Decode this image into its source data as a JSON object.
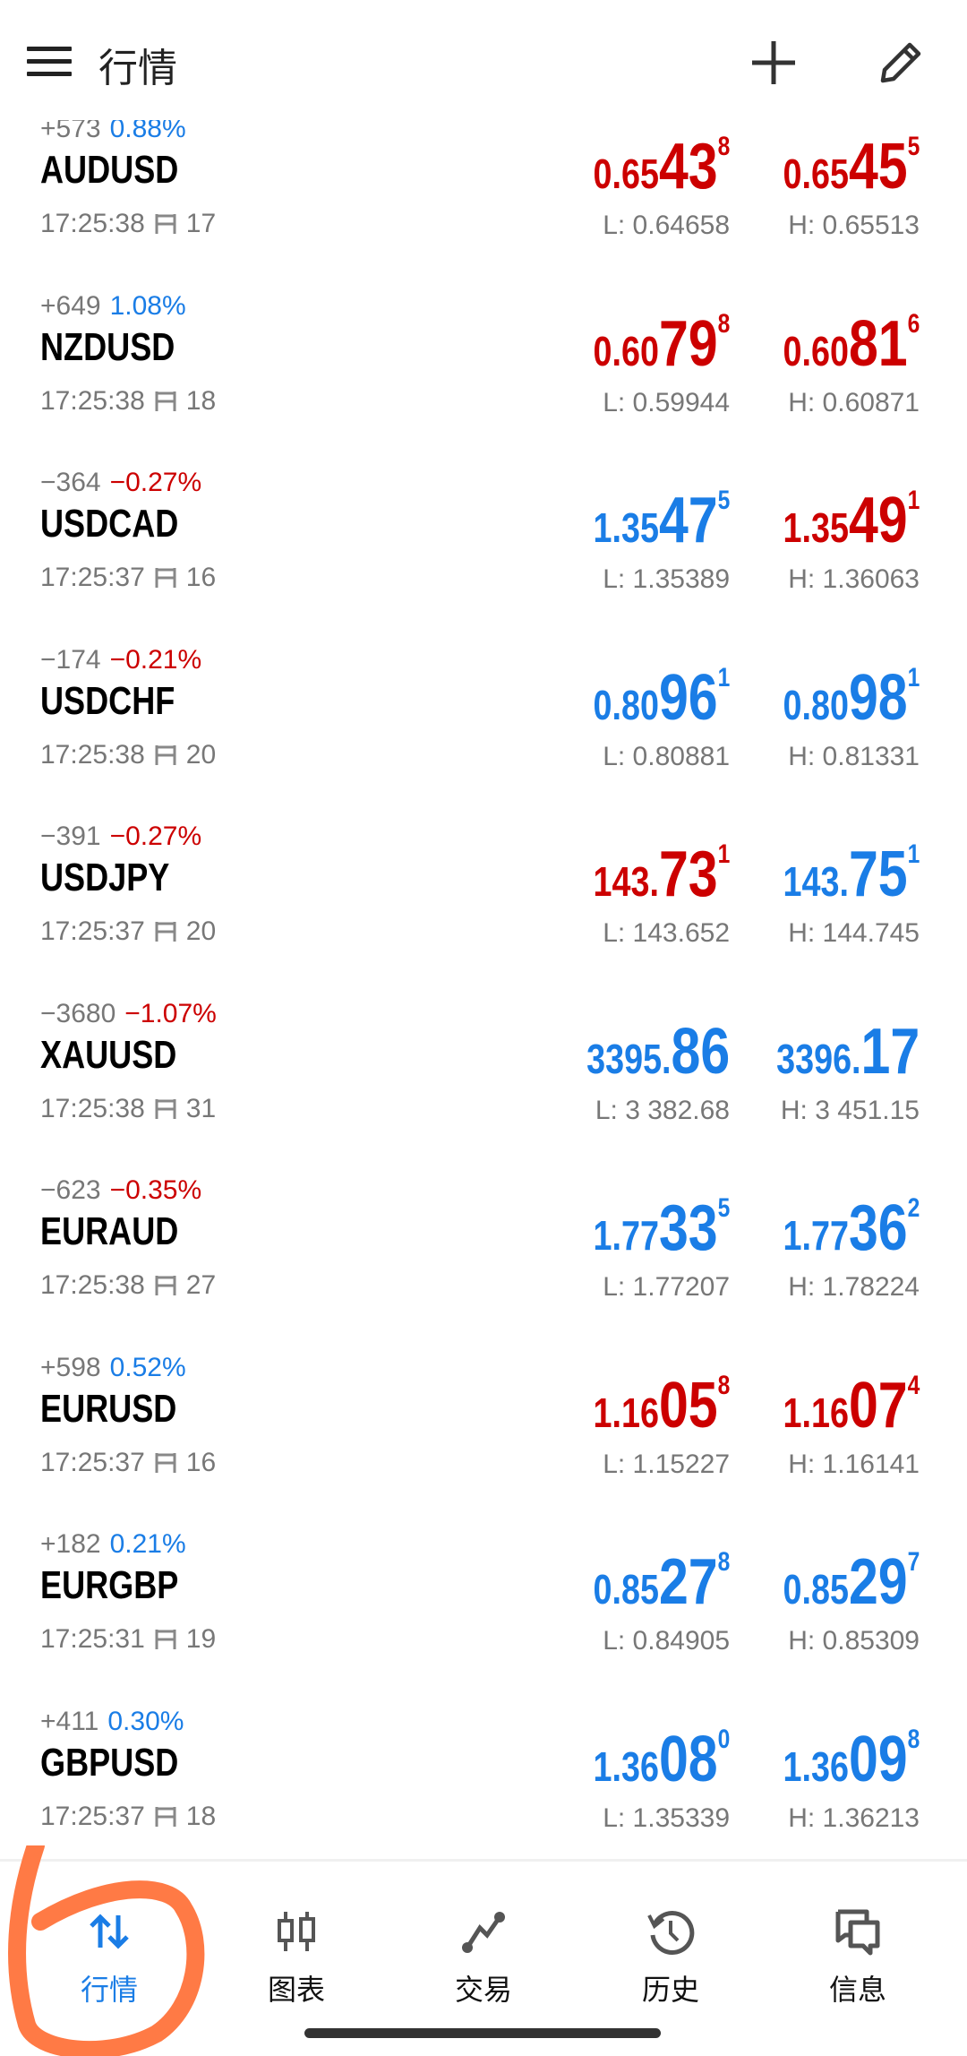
{
  "header": {
    "title": "行情",
    "menu_icon": "hamburger-menu-icon",
    "add_icon": "plus-icon",
    "edit_icon": "pencil-icon"
  },
  "colors": {
    "up": "#1a7de6",
    "down": "#cc0000",
    "annotation": "#ff7a45"
  },
  "rows": [
    {
      "symbol": "AUDUSD",
      "change": "+573",
      "pct": "0.88%",
      "pct_color": "blue",
      "time": "17:25:38",
      "spread": "17",
      "bid": {
        "pre": "0.65",
        "big": "43",
        "sup": "8",
        "color": "red"
      },
      "ask": {
        "pre": "0.65",
        "big": "45",
        "sup": "5",
        "color": "red"
      },
      "low": "L: 0.64658",
      "high": "H: 0.65513"
    },
    {
      "symbol": "NZDUSD",
      "change": "+649",
      "pct": "1.08%",
      "pct_color": "blue",
      "time": "17:25:38",
      "spread": "18",
      "bid": {
        "pre": "0.60",
        "big": "79",
        "sup": "8",
        "color": "red"
      },
      "ask": {
        "pre": "0.60",
        "big": "81",
        "sup": "6",
        "color": "red"
      },
      "low": "L: 0.59944",
      "high": "H: 0.60871"
    },
    {
      "symbol": "USDCAD",
      "change": "−364",
      "pct": "−0.27%",
      "pct_color": "red",
      "time": "17:25:37",
      "spread": "16",
      "bid": {
        "pre": "1.35",
        "big": "47",
        "sup": "5",
        "color": "blue"
      },
      "ask": {
        "pre": "1.35",
        "big": "49",
        "sup": "1",
        "color": "red"
      },
      "low": "L: 1.35389",
      "high": "H: 1.36063"
    },
    {
      "symbol": "USDCHF",
      "change": "−174",
      "pct": "−0.21%",
      "pct_color": "red",
      "time": "17:25:38",
      "spread": "20",
      "bid": {
        "pre": "0.80",
        "big": "96",
        "sup": "1",
        "color": "blue"
      },
      "ask": {
        "pre": "0.80",
        "big": "98",
        "sup": "1",
        "color": "blue"
      },
      "low": "L: 0.80881",
      "high": "H: 0.81331"
    },
    {
      "symbol": "USDJPY",
      "change": "−391",
      "pct": "−0.27%",
      "pct_color": "red",
      "time": "17:25:37",
      "spread": "20",
      "bid": {
        "pre": "143.",
        "big": "73",
        "sup": "1",
        "color": "red"
      },
      "ask": {
        "pre": "143.",
        "big": "75",
        "sup": "1",
        "color": "blue"
      },
      "low": "L: 143.652",
      "high": "H: 144.745"
    },
    {
      "symbol": "XAUUSD",
      "change": "−3680",
      "pct": "−1.07%",
      "pct_color": "red",
      "time": "17:25:38",
      "spread": "31",
      "bid": {
        "pre": "3395.",
        "big": "86",
        "sup": "",
        "color": "blue"
      },
      "ask": {
        "pre": "3396.",
        "big": "17",
        "sup": "",
        "color": "blue"
      },
      "low": "L: 3 382.68",
      "high": "H: 3 451.15"
    },
    {
      "symbol": "EURAUD",
      "change": "−623",
      "pct": "−0.35%",
      "pct_color": "red",
      "time": "17:25:38",
      "spread": "27",
      "bid": {
        "pre": "1.77",
        "big": "33",
        "sup": "5",
        "color": "blue"
      },
      "ask": {
        "pre": "1.77",
        "big": "36",
        "sup": "2",
        "color": "blue"
      },
      "low": "L: 1.77207",
      "high": "H: 1.78224"
    },
    {
      "symbol": "EURUSD",
      "change": "+598",
      "pct": "0.52%",
      "pct_color": "blue",
      "time": "17:25:37",
      "spread": "16",
      "bid": {
        "pre": "1.16",
        "big": "05",
        "sup": "8",
        "color": "red"
      },
      "ask": {
        "pre": "1.16",
        "big": "07",
        "sup": "4",
        "color": "red"
      },
      "low": "L: 1.15227",
      "high": "H: 1.16141"
    },
    {
      "symbol": "EURGBP",
      "change": "+182",
      "pct": "0.21%",
      "pct_color": "blue",
      "time": "17:25:31",
      "spread": "19",
      "bid": {
        "pre": "0.85",
        "big": "27",
        "sup": "8",
        "color": "blue"
      },
      "ask": {
        "pre": "0.85",
        "big": "29",
        "sup": "7",
        "color": "blue"
      },
      "low": "L: 0.84905",
      "high": "H: 0.85309"
    },
    {
      "symbol": "GBPUSD",
      "change": "+411",
      "pct": "0.30%",
      "pct_color": "blue",
      "time": "17:25:37",
      "spread": "18",
      "bid": {
        "pre": "1.36",
        "big": "08",
        "sup": "0",
        "color": "blue"
      },
      "ask": {
        "pre": "1.36",
        "big": "09",
        "sup": "8",
        "color": "blue"
      },
      "low": "L: 1.35339",
      "high": "H: 1.36213"
    }
  ],
  "nav": {
    "active": 0,
    "tabs": [
      {
        "label": "行情",
        "icon": "up-down-arrows-icon"
      },
      {
        "label": "图表",
        "icon": "candlestick-icon"
      },
      {
        "label": "交易",
        "icon": "trade-line-icon"
      },
      {
        "label": "历史",
        "icon": "history-clock-icon"
      },
      {
        "label": "信息",
        "icon": "chat-bubbles-icon"
      }
    ]
  }
}
